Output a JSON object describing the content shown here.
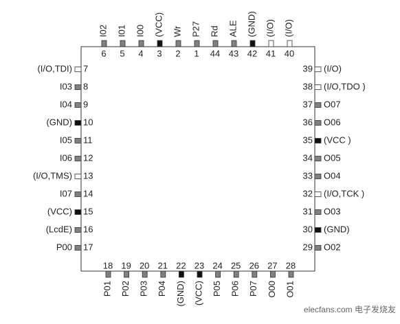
{
  "title": null,
  "pins": {
    "top": [
      {
        "number": 6,
        "label": "I02",
        "fill": "#808080"
      },
      {
        "number": 5,
        "label": "I01",
        "fill": "#808080"
      },
      {
        "number": 4,
        "label": "I00",
        "fill": "#808080"
      },
      {
        "number": 3,
        "label": "(VCC)",
        "fill": "#111111"
      },
      {
        "number": 2,
        "label": "Wr",
        "fill": "#808080"
      },
      {
        "number": 1,
        "label": "P27",
        "fill": "#808080"
      },
      {
        "number": 44,
        "label": "Rd",
        "fill": "#808080"
      },
      {
        "number": 43,
        "label": "ALE",
        "fill": "#808080"
      },
      {
        "number": 42,
        "label": "(GND)",
        "fill": "#111111"
      },
      {
        "number": 41,
        "label": "(I/O)",
        "fill": "#ffffff"
      },
      {
        "number": 40,
        "label": "(I/O)",
        "fill": "#ffffff"
      }
    ],
    "left": [
      {
        "number": 7,
        "label": "(I/O,TDI)",
        "fill": "#ffffff"
      },
      {
        "number": 8,
        "label": "I03",
        "fill": "#808080"
      },
      {
        "number": 9,
        "label": "I04",
        "fill": "#808080"
      },
      {
        "number": 10,
        "label": "(GND)",
        "fill": "#111111"
      },
      {
        "number": 11,
        "label": "I05",
        "fill": "#808080"
      },
      {
        "number": 12,
        "label": "I06",
        "fill": "#808080"
      },
      {
        "number": 13,
        "label": "(I/O,TMS)",
        "fill": "#ffffff"
      },
      {
        "number": 14,
        "label": "I07",
        "fill": "#808080"
      },
      {
        "number": 15,
        "label": "(VCC)",
        "fill": "#111111"
      },
      {
        "number": 16,
        "label": "(LcdE)",
        "fill": "#808080"
      },
      {
        "number": 17,
        "label": "P00",
        "fill": "#808080"
      }
    ],
    "right": [
      {
        "number": 39,
        "label": "(I/O)",
        "fill": "#ffffff"
      },
      {
        "number": 38,
        "label": "(I/O,TDO )",
        "fill": "#ffffff"
      },
      {
        "number": 37,
        "label": "O07",
        "fill": "#808080"
      },
      {
        "number": 36,
        "label": "O06",
        "fill": "#808080"
      },
      {
        "number": 35,
        "label": "(VCC )",
        "fill": "#111111"
      },
      {
        "number": 34,
        "label": "O05",
        "fill": "#808080"
      },
      {
        "number": 33,
        "label": "O04",
        "fill": "#808080"
      },
      {
        "number": 32,
        "label": "(I/O,TCK )",
        "fill": "#ffffff"
      },
      {
        "number": 31,
        "label": "O03",
        "fill": "#808080"
      },
      {
        "number": 30,
        "label": "(GND)",
        "fill": "#111111"
      },
      {
        "number": 29,
        "label": "O02",
        "fill": "#808080"
      }
    ],
    "bottom": [
      {
        "number": 18,
        "label": "P01",
        "fill": "#808080"
      },
      {
        "number": 19,
        "label": "P02",
        "fill": "#808080"
      },
      {
        "number": 20,
        "label": "P03",
        "fill": "#808080"
      },
      {
        "number": 21,
        "label": "P04",
        "fill": "#808080"
      },
      {
        "number": 22,
        "label": "(GND)",
        "fill": "#111111"
      },
      {
        "number": 23,
        "label": "(VCC)",
        "fill": "#111111"
      },
      {
        "number": 24,
        "label": "P05",
        "fill": "#808080"
      },
      {
        "number": 25,
        "label": "P06",
        "fill": "#808080"
      },
      {
        "number": 26,
        "label": "P07",
        "fill": "#808080"
      },
      {
        "number": 27,
        "label": "O00",
        "fill": "#808080"
      },
      {
        "number": 28,
        "label": "O01",
        "fill": "#808080"
      }
    ]
  },
  "watermark": "elecfans.com 电子发烧友"
}
